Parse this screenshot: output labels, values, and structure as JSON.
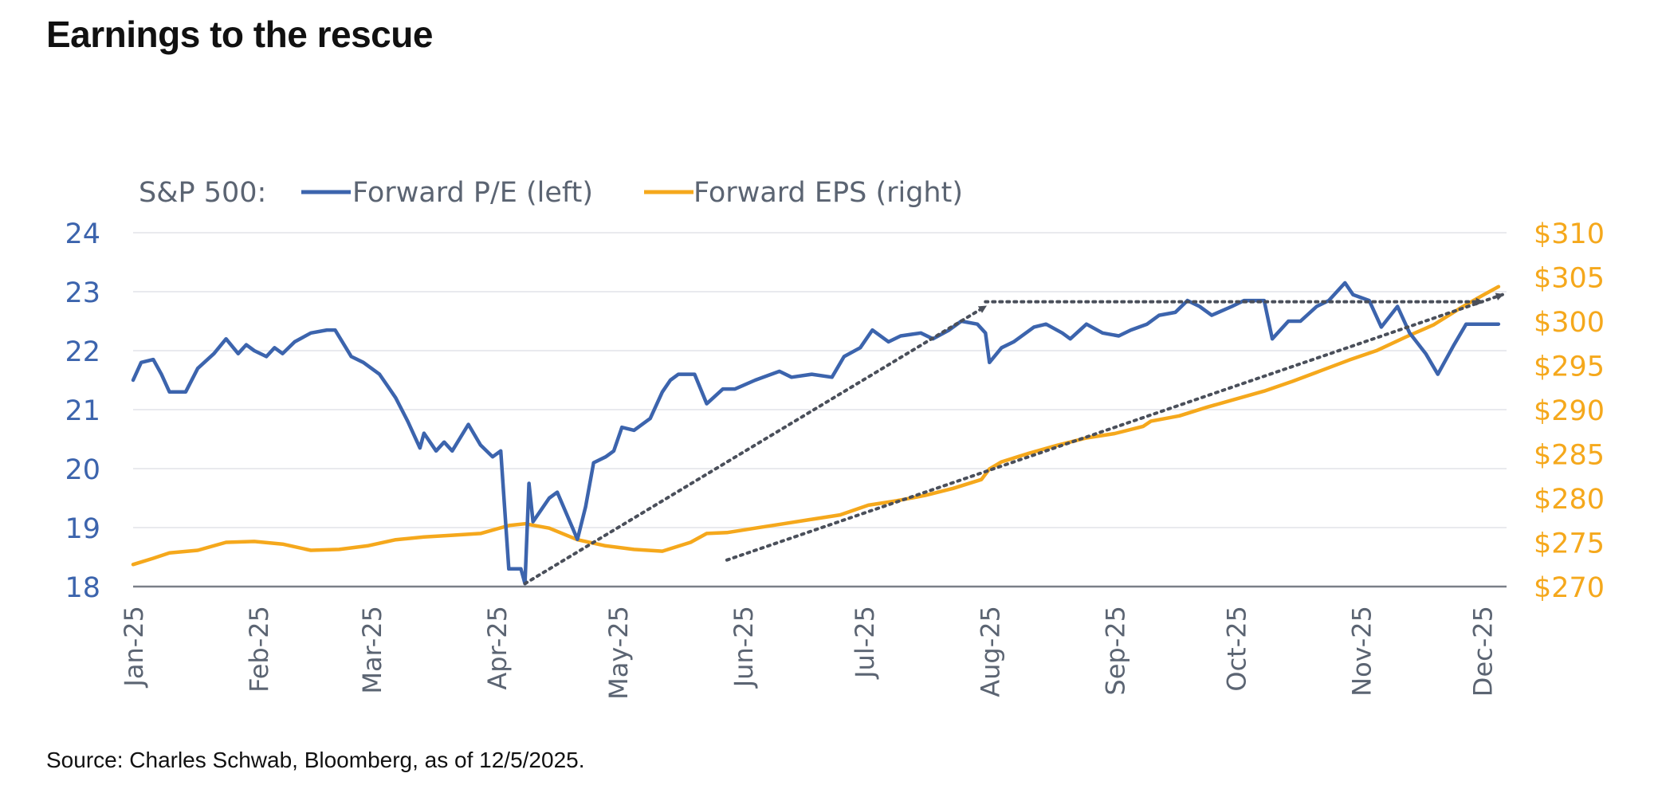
{
  "title": "Earnings to the rescue",
  "source": "Source: Charles Schwab, Bloomberg, as of 12/5/2025.",
  "chart_data": {
    "type": "line",
    "legend": {
      "prefix": "S&P 500:",
      "placement": "top-left",
      "items": [
        {
          "label": "Forward P/E (left)",
          "color": "#3c64ad"
        },
        {
          "label": "Forward EPS (right)",
          "color": "#f5a81c"
        }
      ]
    },
    "x_tick_labels": [
      "Jan-25",
      "Feb-25",
      "Mar-25",
      "Apr-25",
      "May-25",
      "Jun-25",
      "Jul-25",
      "Aug-25",
      "Sep-25",
      "Oct-25",
      "Nov-25",
      "Dec-25"
    ],
    "y_left": {
      "range": [
        18,
        24
      ],
      "ticks": [
        "18",
        "19",
        "20",
        "21",
        "22",
        "23",
        "24"
      ],
      "color": "#3c64ad"
    },
    "y_right": {
      "range": [
        270,
        310
      ],
      "ticks": [
        "$270",
        "$275",
        "$280",
        "$285",
        "$290",
        "$295",
        "$300",
        "$305",
        "$310"
      ],
      "color": "#f5a81c"
    },
    "grid": true,
    "series": [
      {
        "name": "Forward P/E (left)",
        "axis": "left",
        "color": "#3c64ad",
        "points": [
          [
            "2025-01-01",
            21.5
          ],
          [
            "2025-01-03",
            21.8
          ],
          [
            "2025-01-06",
            21.85
          ],
          [
            "2025-01-08",
            21.6
          ],
          [
            "2025-01-10",
            21.3
          ],
          [
            "2025-01-14",
            21.3
          ],
          [
            "2025-01-17",
            21.7
          ],
          [
            "2025-01-21",
            21.95
          ],
          [
            "2025-01-24",
            22.2
          ],
          [
            "2025-01-27",
            21.95
          ],
          [
            "2025-01-29",
            22.1
          ],
          [
            "2025-01-31",
            22.0
          ],
          [
            "2025-02-03",
            21.9
          ],
          [
            "2025-02-05",
            22.05
          ],
          [
            "2025-02-07",
            21.95
          ],
          [
            "2025-02-10",
            22.15
          ],
          [
            "2025-02-14",
            22.3
          ],
          [
            "2025-02-18",
            22.35
          ],
          [
            "2025-02-20",
            22.35
          ],
          [
            "2025-02-24",
            21.9
          ],
          [
            "2025-02-27",
            21.8
          ],
          [
            "2025-03-03",
            21.6
          ],
          [
            "2025-03-05",
            21.4
          ],
          [
            "2025-03-07",
            21.2
          ],
          [
            "2025-03-10",
            20.8
          ],
          [
            "2025-03-13",
            20.35
          ],
          [
            "2025-03-14",
            20.6
          ],
          [
            "2025-03-17",
            20.3
          ],
          [
            "2025-03-19",
            20.45
          ],
          [
            "2025-03-21",
            20.3
          ],
          [
            "2025-03-25",
            20.75
          ],
          [
            "2025-03-28",
            20.4
          ],
          [
            "2025-03-31",
            20.2
          ],
          [
            "2025-04-02",
            20.3
          ],
          [
            "2025-04-04",
            18.3
          ],
          [
            "2025-04-07",
            18.3
          ],
          [
            "2025-04-08",
            18.05
          ],
          [
            "2025-04-09",
            19.75
          ],
          [
            "2025-04-10",
            19.1
          ],
          [
            "2025-04-14",
            19.5
          ],
          [
            "2025-04-16",
            19.6
          ],
          [
            "2025-04-21",
            18.8
          ],
          [
            "2025-04-23",
            19.35
          ],
          [
            "2025-04-25",
            20.1
          ],
          [
            "2025-04-28",
            20.2
          ],
          [
            "2025-04-30",
            20.3
          ],
          [
            "2025-05-02",
            20.7
          ],
          [
            "2025-05-05",
            20.65
          ],
          [
            "2025-05-09",
            20.85
          ],
          [
            "2025-05-12",
            21.3
          ],
          [
            "2025-05-14",
            21.5
          ],
          [
            "2025-05-16",
            21.6
          ],
          [
            "2025-05-20",
            21.6
          ],
          [
            "2025-05-23",
            21.1
          ],
          [
            "2025-05-27",
            21.35
          ],
          [
            "2025-05-30",
            21.35
          ],
          [
            "2025-06-04",
            21.5
          ],
          [
            "2025-06-06",
            21.55
          ],
          [
            "2025-06-10",
            21.65
          ],
          [
            "2025-06-13",
            21.55
          ],
          [
            "2025-06-18",
            21.6
          ],
          [
            "2025-06-23",
            21.55
          ],
          [
            "2025-06-26",
            21.9
          ],
          [
            "2025-06-30",
            22.05
          ],
          [
            "2025-07-03",
            22.35
          ],
          [
            "2025-07-07",
            22.15
          ],
          [
            "2025-07-10",
            22.25
          ],
          [
            "2025-07-15",
            22.3
          ],
          [
            "2025-07-18",
            22.2
          ],
          [
            "2025-07-22",
            22.35
          ],
          [
            "2025-07-25",
            22.5
          ],
          [
            "2025-07-29",
            22.45
          ],
          [
            "2025-07-31",
            22.3
          ],
          [
            "2025-08-01",
            21.8
          ],
          [
            "2025-08-04",
            22.05
          ],
          [
            "2025-08-07",
            22.15
          ],
          [
            "2025-08-12",
            22.4
          ],
          [
            "2025-08-15",
            22.45
          ],
          [
            "2025-08-19",
            22.3
          ],
          [
            "2025-08-21",
            22.2
          ],
          [
            "2025-08-25",
            22.45
          ],
          [
            "2025-08-29",
            22.3
          ],
          [
            "2025-09-02",
            22.25
          ],
          [
            "2025-09-05",
            22.35
          ],
          [
            "2025-09-09",
            22.45
          ],
          [
            "2025-09-12",
            22.6
          ],
          [
            "2025-09-16",
            22.65
          ],
          [
            "2025-09-19",
            22.85
          ],
          [
            "2025-09-22",
            22.75
          ],
          [
            "2025-09-25",
            22.6
          ],
          [
            "2025-09-30",
            22.75
          ],
          [
            "2025-10-03",
            22.85
          ],
          [
            "2025-10-08",
            22.85
          ],
          [
            "2025-10-10",
            22.2
          ],
          [
            "2025-10-14",
            22.5
          ],
          [
            "2025-10-17",
            22.5
          ],
          [
            "2025-10-21",
            22.75
          ],
          [
            "2025-10-24",
            22.85
          ],
          [
            "2025-10-28",
            23.15
          ],
          [
            "2025-10-30",
            22.95
          ],
          [
            "2025-11-03",
            22.85
          ],
          [
            "2025-11-06",
            22.4
          ],
          [
            "2025-11-10",
            22.75
          ],
          [
            "2025-11-13",
            22.3
          ],
          [
            "2025-11-17",
            21.95
          ],
          [
            "2025-11-20",
            21.6
          ],
          [
            "2025-11-24",
            22.1
          ],
          [
            "2025-11-27",
            22.45
          ],
          [
            "2025-12-01",
            22.45
          ],
          [
            "2025-12-05",
            22.45
          ]
        ]
      },
      {
        "name": "Forward EPS (right)",
        "axis": "right",
        "color": "#f5a81c",
        "points": [
          [
            "2025-01-01",
            272.5
          ],
          [
            "2025-01-06",
            273.2
          ],
          [
            "2025-01-10",
            273.8
          ],
          [
            "2025-01-17",
            274.1
          ],
          [
            "2025-01-24",
            275.0
          ],
          [
            "2025-01-31",
            275.1
          ],
          [
            "2025-02-07",
            274.8
          ],
          [
            "2025-02-14",
            274.1
          ],
          [
            "2025-02-21",
            274.2
          ],
          [
            "2025-02-28",
            274.6
          ],
          [
            "2025-03-07",
            275.3
          ],
          [
            "2025-03-14",
            275.6
          ],
          [
            "2025-03-21",
            275.8
          ],
          [
            "2025-03-28",
            276.0
          ],
          [
            "2025-04-04",
            276.9
          ],
          [
            "2025-04-08",
            277.1
          ],
          [
            "2025-04-14",
            276.6
          ],
          [
            "2025-04-21",
            275.3
          ],
          [
            "2025-04-28",
            274.6
          ],
          [
            "2025-05-05",
            274.2
          ],
          [
            "2025-05-12",
            274.0
          ],
          [
            "2025-05-19",
            275.0
          ],
          [
            "2025-05-23",
            276.0
          ],
          [
            "2025-05-28",
            276.1
          ],
          [
            "2025-06-04",
            276.6
          ],
          [
            "2025-06-11",
            277.1
          ],
          [
            "2025-06-18",
            277.6
          ],
          [
            "2025-06-25",
            278.1
          ],
          [
            "2025-07-02",
            279.2
          ],
          [
            "2025-07-09",
            279.7
          ],
          [
            "2025-07-16",
            280.3
          ],
          [
            "2025-07-23",
            281.1
          ],
          [
            "2025-07-30",
            282.1
          ],
          [
            "2025-08-01",
            283.3
          ],
          [
            "2025-08-04",
            284.1
          ],
          [
            "2025-08-11",
            285.1
          ],
          [
            "2025-08-18",
            286.0
          ],
          [
            "2025-08-25",
            286.8
          ],
          [
            "2025-09-01",
            287.3
          ],
          [
            "2025-09-08",
            288.1
          ],
          [
            "2025-09-10",
            288.7
          ],
          [
            "2025-09-17",
            289.3
          ],
          [
            "2025-09-24",
            290.3
          ],
          [
            "2025-10-01",
            291.2
          ],
          [
            "2025-10-08",
            292.1
          ],
          [
            "2025-10-15",
            293.2
          ],
          [
            "2025-10-22",
            294.4
          ],
          [
            "2025-10-29",
            295.6
          ],
          [
            "2025-11-05",
            296.7
          ],
          [
            "2025-11-12",
            298.2
          ],
          [
            "2025-11-19",
            299.6
          ],
          [
            "2025-11-26",
            301.6
          ],
          [
            "2025-12-01",
            302.9
          ],
          [
            "2025-12-05",
            303.9
          ]
        ]
      }
    ],
    "annotations": [
      {
        "type": "dotted-arrow",
        "from": [
          "2025-04-08",
          18.05
        ],
        "to": [
          "2025-07-31",
          22.75
        ]
      },
      {
        "type": "dotted-arrow",
        "from": [
          "2025-07-31",
          22.83
        ],
        "to": [
          "2025-12-01",
          22.83
        ]
      },
      {
        "type": "dotted-arrow",
        "from": [
          "2025-05-28",
          18.45
        ],
        "to": [
          "2025-12-06",
          22.95
        ]
      }
    ]
  }
}
